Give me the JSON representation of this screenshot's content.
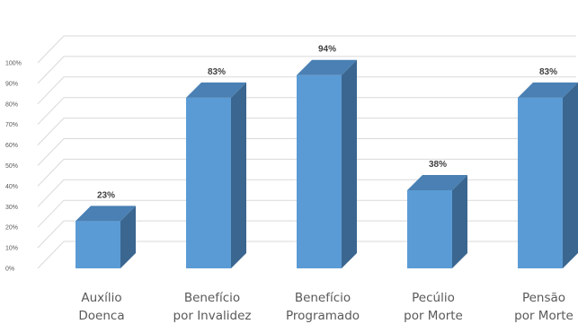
{
  "chart_data": {
    "type": "bar",
    "categories": [
      [
        "Auxílio",
        "Doenca"
      ],
      [
        "Benefício",
        "por Invalidez"
      ],
      [
        "Benefício",
        "Programado"
      ],
      [
        "Pecúlio",
        "por Morte"
      ],
      [
        "Pensão",
        "por Morte"
      ]
    ],
    "values": [
      23,
      83,
      94,
      38,
      83
    ],
    "data_labels": [
      "23%",
      "83%",
      "94%",
      "38%",
      "83%"
    ],
    "yticks": [
      "0%",
      "10%",
      "20%",
      "30%",
      "40%",
      "50%",
      "60%",
      "70%",
      "80%",
      "90%",
      "100%"
    ],
    "ylim": [
      0,
      100
    ],
    "style": "3d-column",
    "grid": true,
    "colors": {
      "front": "#5b9bd5",
      "side": "#3a6690",
      "top": "#4a80b3",
      "grid": "#d9d9d9"
    }
  }
}
